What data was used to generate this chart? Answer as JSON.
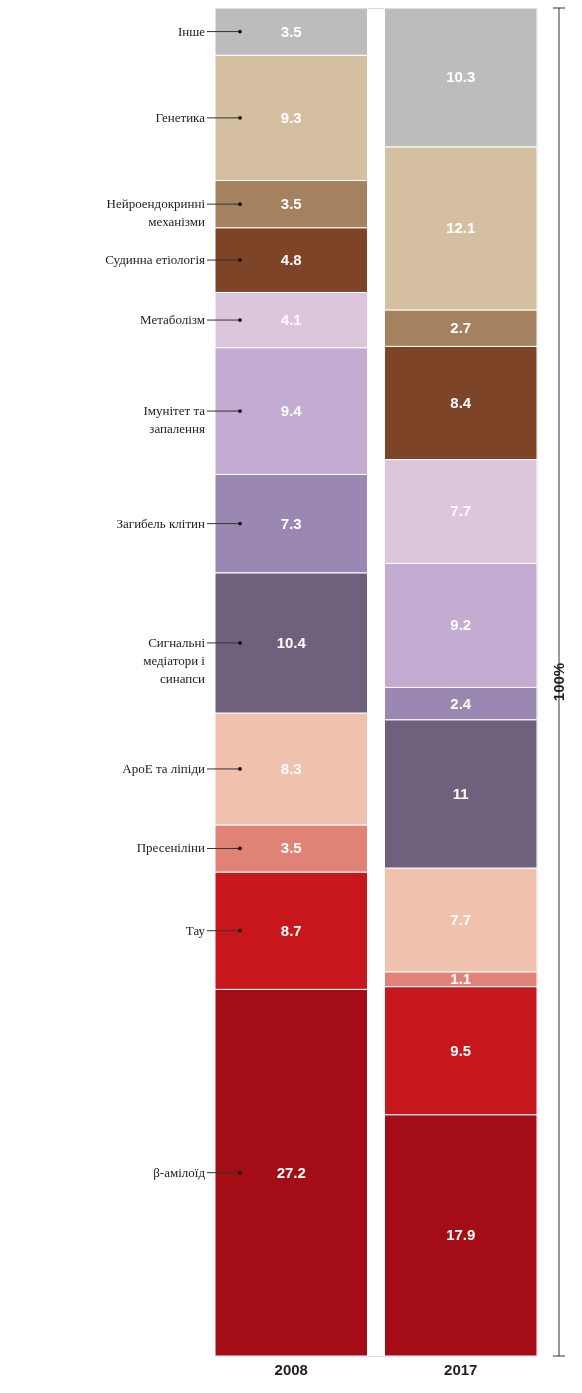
{
  "chart_data": {
    "type": "bar",
    "stacked": true,
    "categories": [
      "2008",
      "2017"
    ],
    "ylim": [
      0,
      100
    ],
    "tick_labels": "x",
    "grid": false,
    "data_labels": true,
    "annotations": [
      "100%"
    ],
    "series": [
      {
        "name": "β-амілоїд",
        "color": "#a50d16",
        "values": [
          27.2,
          17.9
        ]
      },
      {
        "name": "Тау",
        "color": "#c8161d",
        "values": [
          8.7,
          9.5
        ]
      },
      {
        "name": "Пресеніліни",
        "color": "#e08275",
        "values": [
          3.5,
          1.1
        ]
      },
      {
        "name": "ApoE та ліпіди",
        "color": "#f0c1ad",
        "values": [
          8.3,
          7.7
        ]
      },
      {
        "name": "Сигнальні медіатори і синапси",
        "color": "#6f607e",
        "values": [
          10.4,
          11
        ]
      },
      {
        "name": "Загибель клітин",
        "color": "#9a88b3",
        "values": [
          7.3,
          2.4
        ]
      },
      {
        "name": "Імунітет та запалення",
        "color": "#c4abd2",
        "values": [
          9.4,
          9.2
        ]
      },
      {
        "name": "Метаболізм",
        "color": "#dcc6dc",
        "values": [
          4.1,
          7.7
        ]
      },
      {
        "name": "Судинна етіологія",
        "color": "#7d4428",
        "values": [
          4.8,
          8.4
        ]
      },
      {
        "name": "Нейроендокринні механізми",
        "color": "#a4815f",
        "values": [
          3.5,
          2.7
        ]
      },
      {
        "name": "Генетика",
        "color": "#d4c0a0",
        "values": [
          9.3,
          12.1
        ]
      },
      {
        "name": "Інше",
        "color": "#bcbcbe",
        "values": [
          3.5,
          10.3
        ]
      }
    ]
  }
}
